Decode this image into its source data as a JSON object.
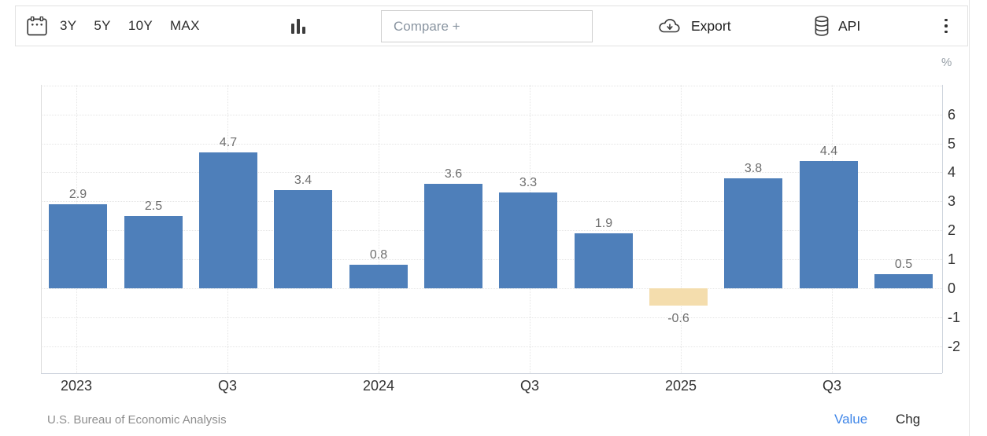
{
  "toolbar": {
    "range_buttons": [
      "3Y",
      "5Y",
      "10Y",
      "MAX"
    ],
    "compare_placeholder": "Compare +",
    "export_label": "Export",
    "api_label": "API",
    "icons": [
      "calendar-icon",
      "column-chart-icon",
      "cloud-download-icon",
      "database-icon",
      "kebab-menu-icon"
    ]
  },
  "chart_data": {
    "type": "bar",
    "title": "",
    "unit": "%",
    "values": [
      2.9,
      2.5,
      4.7,
      3.4,
      0.8,
      3.6,
      3.3,
      1.9,
      -0.6,
      3.8,
      4.4,
      0.5
    ],
    "x_tick_labels": [
      "2023",
      "Q3",
      "2024",
      "Q3",
      "2025",
      "Q3"
    ],
    "y_tick_labels": [
      6,
      5,
      4,
      3,
      2,
      1,
      0,
      -1,
      -2
    ],
    "ylim": [
      -3,
      7
    ],
    "grid": "dotted",
    "legend": "none",
    "colors": {
      "bar": "#4e7fba",
      "negative_bar": "#f4ddad",
      "value_label": "#6e6e6e",
      "axis_label": "#333333"
    }
  },
  "footer": {
    "source": "U.S. Bureau of Economic Analysis",
    "value_label": "Value",
    "chg_label": "Chg"
  }
}
